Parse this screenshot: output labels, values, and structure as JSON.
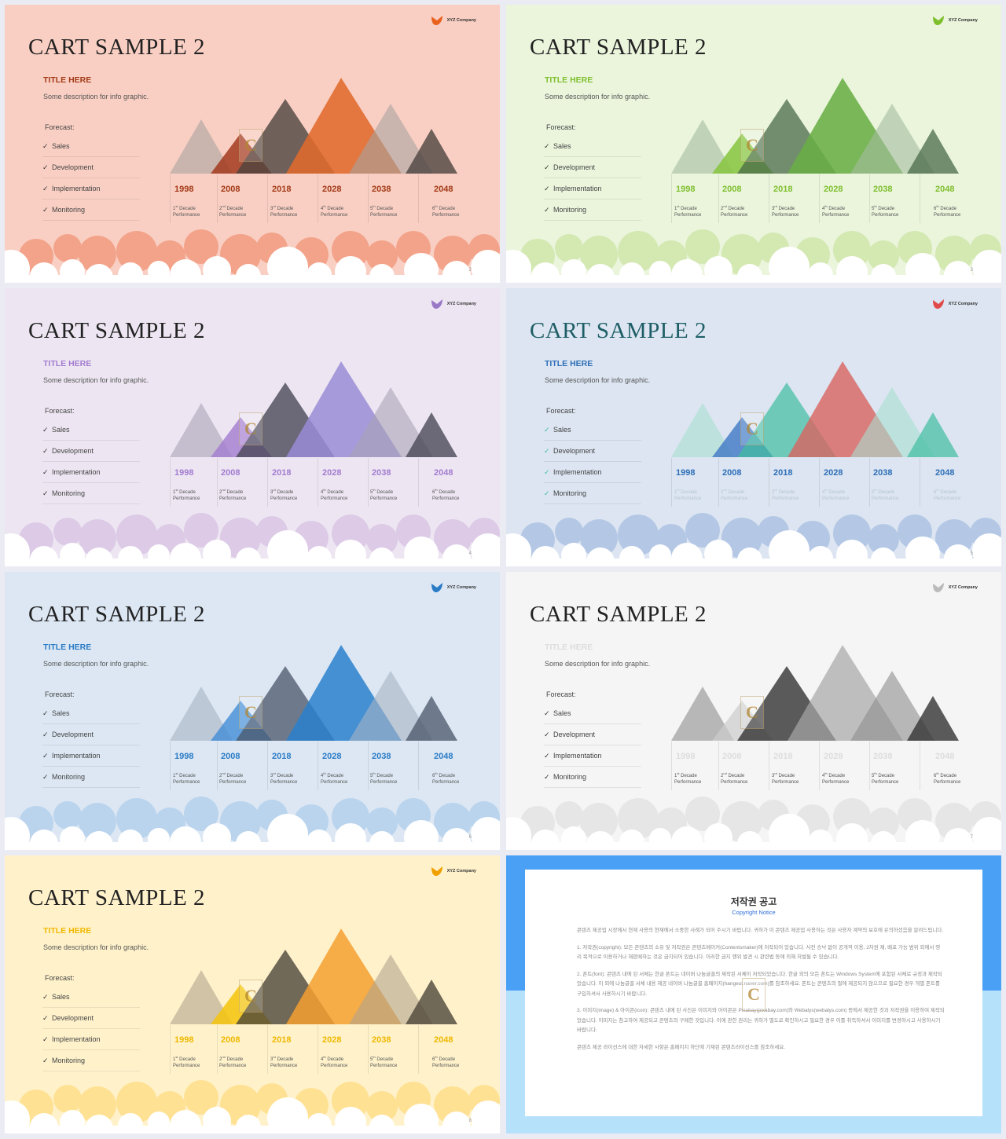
{
  "slides": [
    {
      "page": "2",
      "title_color": "#222222",
      "sub_color": "#a23a17",
      "year_color": "#a23a17",
      "bg": "#f9cfc3",
      "cloud_color": "#f3a38a",
      "logo_color": "#e8621e",
      "tri": [
        {
          "c": "#a8a4a0",
          "o": 0.6
        },
        {
          "c": "#a33a1f",
          "o": 0.85
        },
        {
          "c": "#4e4440",
          "o": 0.8
        },
        {
          "c": "#e06a2c",
          "o": 0.88
        },
        {
          "c": "#a8a4a0",
          "o": 0.6
        },
        {
          "c": "#4e4440",
          "o": 0.8
        }
      ],
      "checks_color": "#333333",
      "caps_faded": false
    },
    {
      "page": "3",
      "title_color": "#222222",
      "sub_color": "#7fbf2e",
      "year_color": "#7fbf2e",
      "bg": "#eaf5dc",
      "cloud_color": "#d4e8b2",
      "logo_color": "#7fbf2e",
      "tri": [
        {
          "c": "#a4bca0",
          "o": 0.6
        },
        {
          "c": "#86c43e",
          "o": 0.85
        },
        {
          "c": "#4a6a48",
          "o": 0.75
        },
        {
          "c": "#6aae45",
          "o": 0.88
        },
        {
          "c": "#a4bca0",
          "o": 0.6
        },
        {
          "c": "#4a6a48",
          "o": 0.75
        }
      ],
      "checks_color": "#333333",
      "caps_faded": false
    },
    {
      "page": "4",
      "title_color": "#222222",
      "sub_color": "#a37cd0",
      "year_color": "#a37cd0",
      "bg": "#ede6f2",
      "cloud_color": "#dccae6",
      "logo_color": "#9a78c8",
      "tri": [
        {
          "c": "#a8a4b6",
          "o": 0.6
        },
        {
          "c": "#a37cd0",
          "o": 0.8
        },
        {
          "c": "#4a4858",
          "o": 0.8
        },
        {
          "c": "#9a8cd6",
          "o": 0.85
        },
        {
          "c": "#a8a4b6",
          "o": 0.6
        },
        {
          "c": "#4a4858",
          "o": 0.8
        }
      ],
      "checks_color": "#333333",
      "caps_faded": false
    },
    {
      "page": "5",
      "title_color": "#1e5e66",
      "sub_color": "#2e6fb8",
      "year_color": "#2e6fb8",
      "bg": "#dce5f1",
      "cloud_color": "#b4c8e6",
      "logo_color": "#e04a4a",
      "tri": [
        {
          "c": "#a8e0d0",
          "o": 0.6
        },
        {
          "c": "#3e78c6",
          "o": 0.8
        },
        {
          "c": "#3ebea0",
          "o": 0.7
        },
        {
          "c": "#d86460",
          "o": 0.8
        },
        {
          "c": "#a8e0d0",
          "o": 0.6
        },
        {
          "c": "#3ebea0",
          "o": 0.7
        }
      ],
      "checks_color": "#3ebea0",
      "caps_faded": true
    },
    {
      "page": "6",
      "title_color": "#222222",
      "sub_color": "#2a7bc6",
      "year_color": "#2a7bc6",
      "bg": "#dce7f3",
      "cloud_color": "#bad4ee",
      "logo_color": "#2a7bc6",
      "tri": [
        {
          "c": "#a8b4c4",
          "o": 0.6
        },
        {
          "c": "#3a88d6",
          "o": 0.75
        },
        {
          "c": "#4a5668",
          "o": 0.75
        },
        {
          "c": "#2a80cc",
          "o": 0.85
        },
        {
          "c": "#a8b4c4",
          "o": 0.6
        },
        {
          "c": "#4a5668",
          "o": 0.75
        }
      ],
      "checks_color": "#333333",
      "caps_faded": false
    },
    {
      "page": "7",
      "title_color": "#222222",
      "sub_color": "#dddddd",
      "year_color": "#dddddd",
      "bg": "#f5f5f5",
      "cloud_color": "#e6e6e6",
      "logo_color": "#bbbbbb",
      "tri": [
        {
          "c": "#8e8e8e",
          "o": 0.6
        },
        {
          "c": "#cccccc",
          "o": 0.7
        },
        {
          "c": "#333333",
          "o": 0.8
        },
        {
          "c": "#a6a6a6",
          "o": 0.7
        },
        {
          "c": "#8e8e8e",
          "o": 0.6
        },
        {
          "c": "#333333",
          "o": 0.8
        }
      ],
      "checks_color": "#333333",
      "caps_faded": false
    },
    {
      "page": "8",
      "title_color": "#222222",
      "sub_color": "#f0b800",
      "year_color": "#f0b800",
      "bg": "#fff2cb",
      "cloud_color": "#ffe194",
      "logo_color": "#f0a000",
      "tri": [
        {
          "c": "#b0a48e",
          "o": 0.6
        },
        {
          "c": "#f4c40c",
          "o": 0.85
        },
        {
          "c": "#4e463a",
          "o": 0.8
        },
        {
          "c": "#f4a030",
          "o": 0.85
        },
        {
          "c": "#b0a48e",
          "o": 0.6
        },
        {
          "c": "#4e463a",
          "o": 0.8
        }
      ],
      "checks_color": "#333333",
      "caps_faded": false
    }
  ],
  "common": {
    "title": "CART SAMPLE 2",
    "logo_text": "XYZ Company",
    "sub_title": "TITLE HERE",
    "description": "Some description for info graphic.",
    "forecast_label": "Forecast:",
    "check_glyph": "✓",
    "forecast_items": [
      "Sales",
      "Development",
      "Implementation",
      "Monitoring"
    ],
    "years": [
      "1998",
      "2008",
      "2018",
      "2028",
      "2038",
      "2048"
    ],
    "captions": [
      {
        "num": "1",
        "suf": "st",
        "label": "Decade",
        "line2": "Performance"
      },
      {
        "num": "2",
        "suf": "nd",
        "label": "Decade",
        "line2": "Performance"
      },
      {
        "num": "3",
        "suf": "rd",
        "label": "Decade",
        "line2": "Performance"
      },
      {
        "num": "4",
        "suf": "th",
        "label": "Decade",
        "line2": "Performance"
      },
      {
        "num": "5",
        "suf": "th",
        "label": "Decade",
        "line2": "Performance"
      },
      {
        "num": "6",
        "suf": "th",
        "label": "Decade",
        "line2": "Performance"
      }
    ]
  },
  "copyright": {
    "title": "저작권 공고",
    "subtitle": "Copyright Notice",
    "paragraphs": [
      "콘텐츠 제공업 시장에서 현재 사용의 현재에서 소중한 사례가 되어 주시기 바랍니다. 귀하가 이 콘텐츠 제공업 사용하는 것은 사용자 계약의 보호에 유의하셨음을 알려드립니다.",
      "1. 저작권(copyright): 모든 콘텐츠의 소유 및 저작권은 콘텐츠메이커(Contentsmaker)에 저작되어 있습니다. 사전 승낙 없이 공개적 이용, 2차원 제, 배포 가능 범위 외에서 영리 목적으로 이용하거나 재판매하는 것은 금지되어 있습니다. 이러한 금지 행위 발견 시 관련법 등에 의해 처벌될 수 있습니다.",
      "2. 폰트(font): 콘텐츠 내에 된 서체는 한글 폰트는 네이버 나눔글꼴의 제작된 서체이 저작되었습니다. 한글 외의 모든 폰트는 Windows System에 포함된 서체로 규정과 제작되었습니다. 이 외에 나눔글꼴 서체 내용 제공 네이버 나눔글꼴 홈페이지(hangeul.naver.com)를 참조하세요. 폰트는 콘텐츠의 절에 제공되지 않으므로 필요한 경우 개별 폰트를 구입하셔서 사용하시기 바랍니다.",
      "3. 이미지(image) & 아이콘(icon): 콘텐츠 내에 된 사진은 이미지와 아이콘은 Pixabay(pixabay.com)와 Webalys(webalys.com) 등에서 제공한 것과 저작권을 이용하여 제작되었습니다. 이미지는 참고하여 제공되고 콘텐츠의 구매한 것입니다. 이에 관한 권리는 귀하가 별도로 확인하시고 필요한 경우 이를 취득하셔서 이미지를 변경하시고 사용하시기 바랍니다.",
      "콘텐츠 제공 라이선스에 대한 자세한 사항은 홈페이지 하단에 기재된 콘텐츠라이선스를 참조하세요."
    ],
    "colors": {
      "top": "#4aa0f5",
      "bottom": "#b6e1fb"
    }
  }
}
